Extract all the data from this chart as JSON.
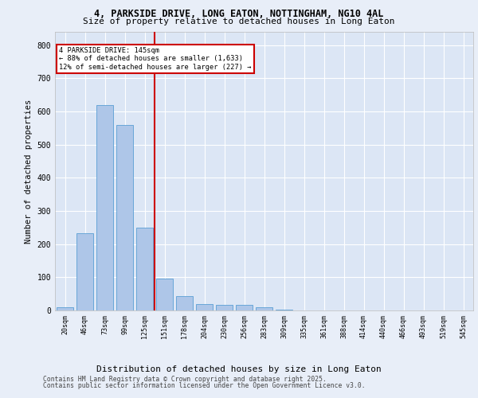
{
  "title_line1": "4, PARKSIDE DRIVE, LONG EATON, NOTTINGHAM, NG10 4AL",
  "title_line2": "Size of property relative to detached houses in Long Eaton",
  "xlabel": "Distribution of detached houses by size in Long Eaton",
  "ylabel": "Number of detached properties",
  "bar_labels": [
    "20sqm",
    "46sqm",
    "73sqm",
    "99sqm",
    "125sqm",
    "151sqm",
    "178sqm",
    "204sqm",
    "230sqm",
    "256sqm",
    "283sqm",
    "309sqm",
    "335sqm",
    "361sqm",
    "388sqm",
    "414sqm",
    "440sqm",
    "466sqm",
    "493sqm",
    "519sqm",
    "545sqm"
  ],
  "bar_values": [
    10,
    232,
    620,
    560,
    250,
    97,
    43,
    20,
    17,
    17,
    10,
    2,
    1,
    0,
    0,
    0,
    0,
    0,
    0,
    0,
    0
  ],
  "bar_color": "#aec6e8",
  "bar_edge_color": "#5a9fd4",
  "annotation_line1": "4 PARKSIDE DRIVE: 145sqm",
  "annotation_line2": "← 88% of detached houses are smaller (1,633)",
  "annotation_line3": "12% of semi-detached houses are larger (227) →",
  "vline_color": "#cc0000",
  "ylim": [
    0,
    840
  ],
  "yticks": [
    0,
    100,
    200,
    300,
    400,
    500,
    600,
    700,
    800
  ],
  "fig_bg_color": "#e8eef8",
  "plot_bg_color": "#dce6f5",
  "footer_line1": "Contains HM Land Registry data © Crown copyright and database right 2025.",
  "footer_line2": "Contains public sector information licensed under the Open Government Licence v3.0."
}
